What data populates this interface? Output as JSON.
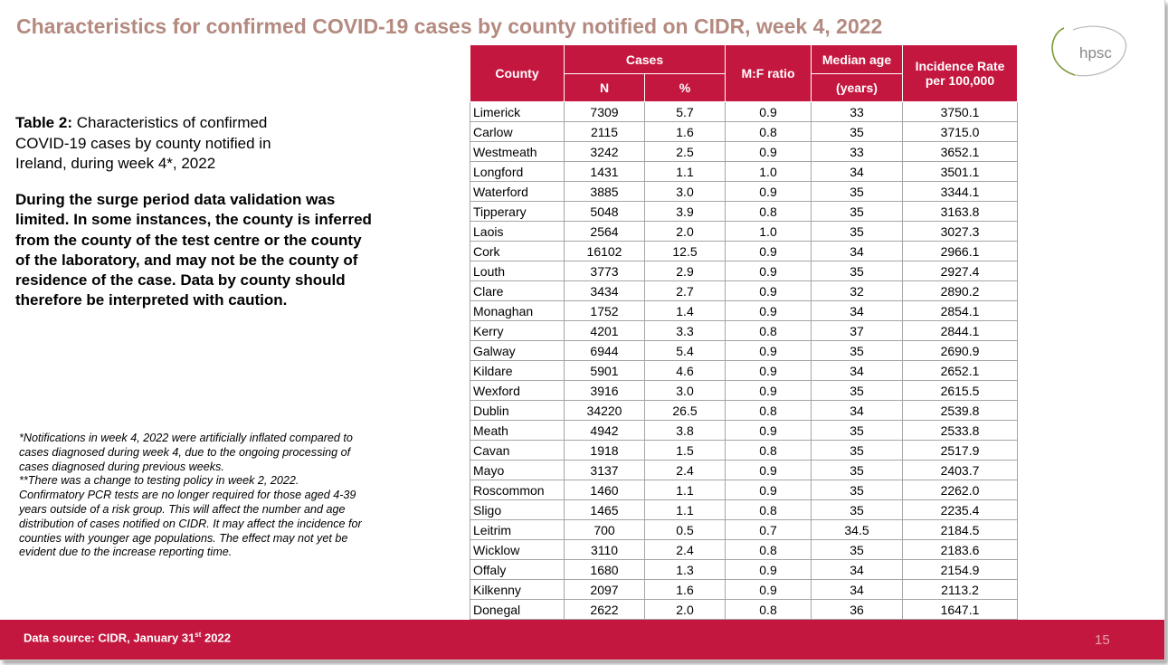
{
  "slide": {
    "title": "Characteristics for confirmed COVID-19 cases by county notified on CIDR, week 4, 2022",
    "logo_text": "hpsc",
    "intro_label": "Table 2:",
    "intro_text": " Characteristics of confirmed COVID-19 cases by county notified in Ireland, during week 4*, 2022",
    "warning": "During the surge period data validation was limited. In some instances, the county is inferred from the county of the test centre or the county of the laboratory, and may not be the county of residence of the case. Data by county should therefore be interpreted with caution.",
    "note1": "*Notifications in week 4, 2022 were artificially inflated compared to cases diagnosed during week 4, due to the ongoing processing of cases diagnosed during previous weeks.",
    "note2": "**There was a change to testing policy in week 2, 2022. Confirmatory PCR tests are no longer required for those aged 4-39 years outside of a risk group. This will affect the number and age distribution of cases notified on CIDR. It may affect the incidence for counties with younger age populations. The effect may not yet be evident due to the increase reporting time.",
    "footer_source_prefix": "Data source: CIDR, January 31",
    "footer_source_sup": "st",
    "footer_source_suffix": " 2022",
    "page_number": "15"
  },
  "colors": {
    "accent": "#c4173f",
    "title": "#b48a80"
  },
  "table": {
    "headers": {
      "county": "County",
      "cases": "Cases",
      "n": "N",
      "pct": "%",
      "mf": "M:F ratio",
      "median_top": "Median age",
      "median_bottom": "(years)",
      "rate_line1": "Incidence Rate",
      "rate_line2": "per 100,000"
    },
    "rows": [
      [
        "Limerick",
        "7309",
        "5.7",
        "0.9",
        "33",
        "3750.1"
      ],
      [
        "Carlow",
        "2115",
        "1.6",
        "0.8",
        "35",
        "3715.0"
      ],
      [
        "Westmeath",
        "3242",
        "2.5",
        "0.9",
        "33",
        "3652.1"
      ],
      [
        "Longford",
        "1431",
        "1.1",
        "1.0",
        "34",
        "3501.1"
      ],
      [
        "Waterford",
        "3885",
        "3.0",
        "0.9",
        "35",
        "3344.1"
      ],
      [
        "Tipperary",
        "5048",
        "3.9",
        "0.8",
        "35",
        "3163.8"
      ],
      [
        "Laois",
        "2564",
        "2.0",
        "1.0",
        "35",
        "3027.3"
      ],
      [
        "Cork",
        "16102",
        "12.5",
        "0.9",
        "34",
        "2966.1"
      ],
      [
        "Louth",
        "3773",
        "2.9",
        "0.9",
        "35",
        "2927.4"
      ],
      [
        "Clare",
        "3434",
        "2.7",
        "0.9",
        "32",
        "2890.2"
      ],
      [
        "Monaghan",
        "1752",
        "1.4",
        "0.9",
        "34",
        "2854.1"
      ],
      [
        "Kerry",
        "4201",
        "3.3",
        "0.8",
        "37",
        "2844.1"
      ],
      [
        "Galway",
        "6944",
        "5.4",
        "0.9",
        "35",
        "2690.9"
      ],
      [
        "Kildare",
        "5901",
        "4.6",
        "0.9",
        "34",
        "2652.1"
      ],
      [
        "Wexford",
        "3916",
        "3.0",
        "0.9",
        "35",
        "2615.5"
      ],
      [
        "Dublin",
        "34220",
        "26.5",
        "0.8",
        "34",
        "2539.8"
      ],
      [
        "Meath",
        "4942",
        "3.8",
        "0.9",
        "35",
        "2533.8"
      ],
      [
        "Cavan",
        "1918",
        "1.5",
        "0.8",
        "35",
        "2517.9"
      ],
      [
        "Mayo",
        "3137",
        "2.4",
        "0.9",
        "35",
        "2403.7"
      ],
      [
        "Roscommon",
        "1460",
        "1.1",
        "0.9",
        "35",
        "2262.0"
      ],
      [
        "Sligo",
        "1465",
        "1.1",
        "0.8",
        "35",
        "2235.4"
      ],
      [
        "Leitrim",
        "700",
        "0.5",
        "0.7",
        "34.5",
        "2184.5"
      ],
      [
        "Wicklow",
        "3110",
        "2.4",
        "0.8",
        "35",
        "2183.6"
      ],
      [
        "Offaly",
        "1680",
        "1.3",
        "0.9",
        "34",
        "2154.9"
      ],
      [
        "Kilkenny",
        "2097",
        "1.6",
        "0.9",
        "34",
        "2113.2"
      ],
      [
        "Donegal",
        "2622",
        "2.0",
        "0.8",
        "36",
        "1647.1"
      ]
    ]
  }
}
